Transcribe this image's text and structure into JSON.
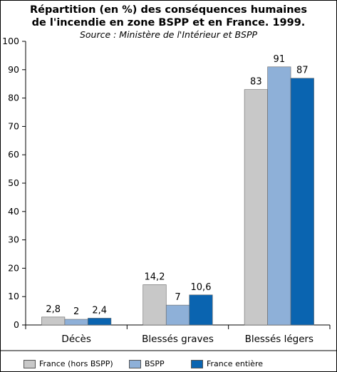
{
  "chart_data": {
    "type": "bar",
    "title": "Répartition (en %) des conséquences humaines de l'incendie en zone BSPP et en France. 1999.",
    "title_lines": [
      "Répartition (en %) des conséquences humaines",
      "de l'incendie en zone BSPP et en France. 1999."
    ],
    "subtitle": "Source : Ministère de l'Intérieur et BSPP",
    "categories": [
      "Décès",
      "Blessés graves",
      "Blessés légers"
    ],
    "series": [
      {
        "name": "France (hors BSPP)",
        "color": "#c8c8c8",
        "values": [
          2.8,
          14.2,
          83
        ],
        "labels": [
          "2,8",
          "14,2",
          "83"
        ]
      },
      {
        "name": "BSPP",
        "color": "#8eb0d8",
        "values": [
          2,
          7,
          91
        ],
        "labels": [
          "2",
          "7",
          "91"
        ]
      },
      {
        "name": "France entière",
        "color": "#0a64b0",
        "values": [
          2.4,
          10.6,
          87
        ],
        "labels": [
          "2,4",
          "10,6",
          "87"
        ]
      }
    ],
    "ylim": [
      0,
      100
    ],
    "yticks": [
      0,
      10,
      20,
      30,
      40,
      50,
      60,
      70,
      80,
      90,
      100
    ],
    "grid": false,
    "legend_position": "bottom"
  }
}
